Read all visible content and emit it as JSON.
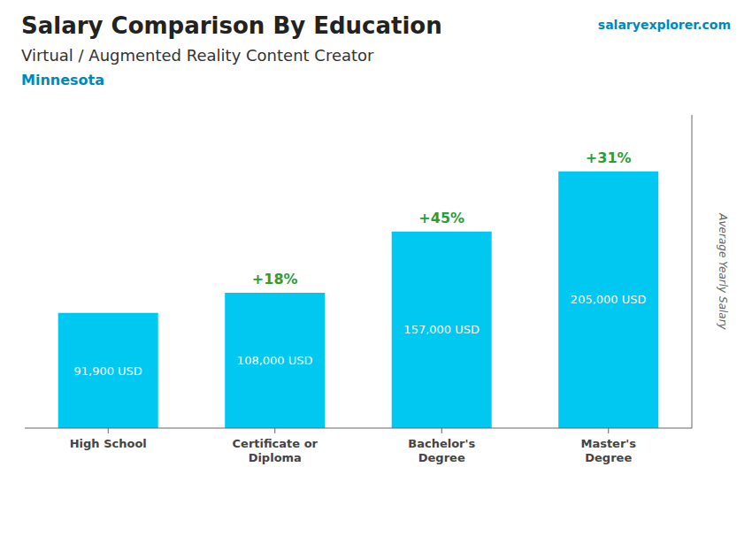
{
  "chart_data": {
    "type": "bar",
    "title": "Salary Comparison By Education",
    "subtitle": "Virtual / Augmented Reality Content Creator",
    "location": "Minnesota",
    "source": "salaryexplorer.com",
    "y_label": "Average Yearly Salary",
    "categories": [
      "High School",
      "Certificate or\nDiploma",
      "Bachelor's\nDegree",
      "Master's\nDegree"
    ],
    "values": [
      91900,
      108000,
      157000,
      205000
    ],
    "value_labels": [
      "91,900 USD",
      "108,000 USD",
      "157,000 USD",
      "205,000 USD"
    ],
    "annotations": [
      "+18%",
      "+45%",
      "+31%"
    ],
    "color": "#00c8f0",
    "ylim": [
      0,
      250000
    ],
    "grid": false,
    "data_labels": true,
    "tick_labels": "x"
  }
}
